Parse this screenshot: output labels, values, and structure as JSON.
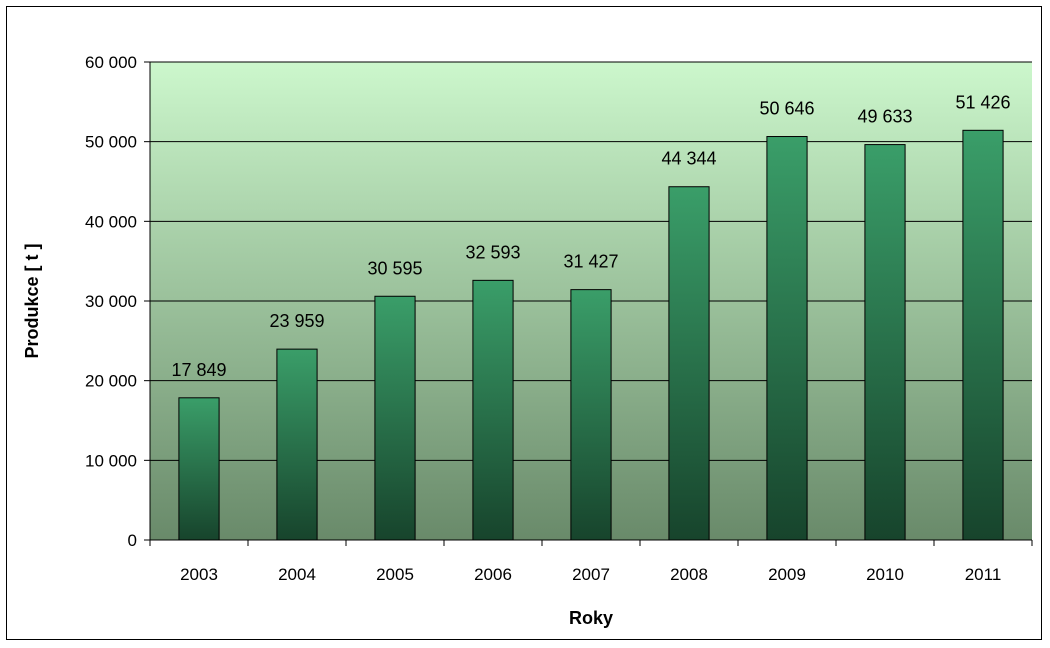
{
  "chart_data": {
    "type": "bar",
    "title": "",
    "xlabel": "Roky",
    "ylabel": "Produkce [ t ]",
    "categories": [
      "2003",
      "2004",
      "2005",
      "2006",
      "2007",
      "2008",
      "2009",
      "2010",
      "2011"
    ],
    "values": [
      17849,
      23959,
      30595,
      32593,
      31427,
      44344,
      50646,
      49633,
      51426
    ],
    "value_labels": [
      "17 849",
      "23 959",
      "30 595",
      "32 593",
      "31 427",
      "44 344",
      "50 646",
      "49 633",
      "51 426"
    ],
    "ylim": [
      0,
      60000
    ],
    "y_ticks": [
      0,
      10000,
      20000,
      30000,
      40000,
      50000,
      60000
    ],
    "y_tick_labels": [
      "0",
      "10 000",
      "20 000",
      "30 000",
      "40 000",
      "50 000",
      "60 000"
    ],
    "grid": true,
    "legend": "none",
    "colors": {
      "plot_bg_top": "#ccf7cc",
      "plot_bg_bottom": "#698a6a",
      "bar_light": "#3a9e69",
      "bar_dark": "#17442c",
      "gridline": "#000000"
    }
  }
}
